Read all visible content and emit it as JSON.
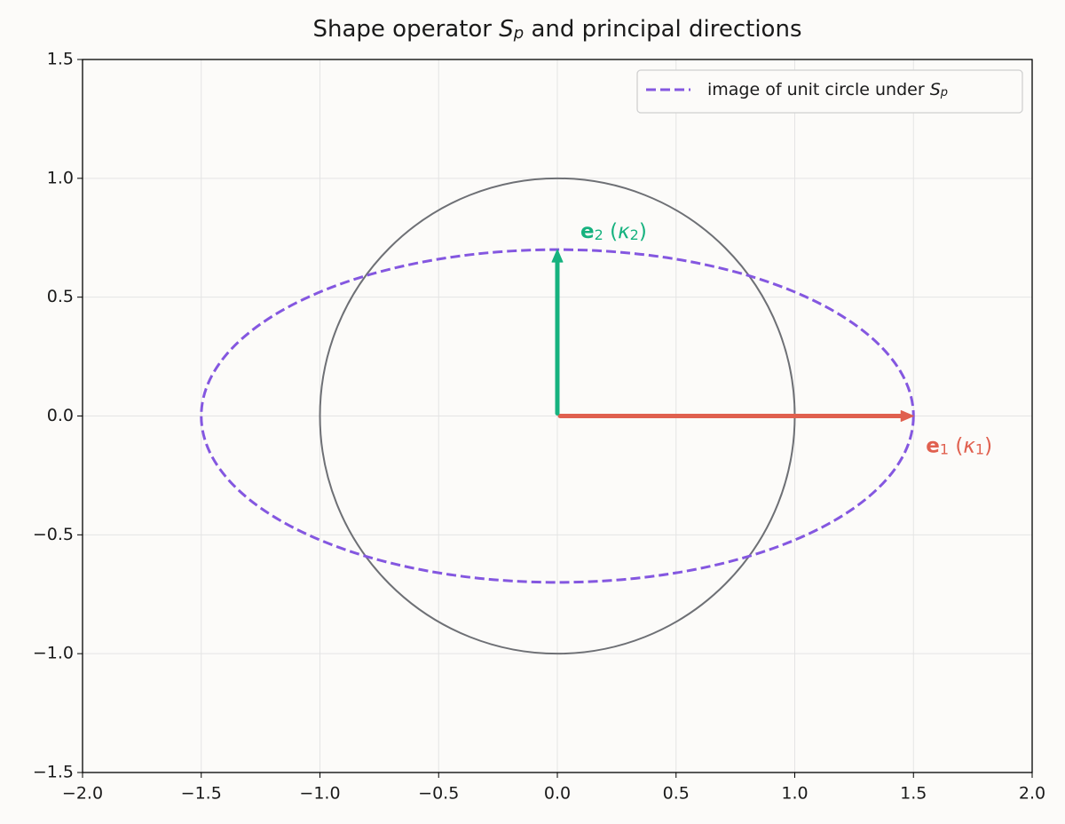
{
  "chart_data": {
    "type": "vector",
    "title": [
      {
        "text": "Shape operator "
      },
      {
        "text": "S",
        "style": "italic"
      },
      {
        "text": "p",
        "style": "sub-italic"
      },
      {
        "text": " and principal directions"
      }
    ],
    "xlim": [
      -2,
      2
    ],
    "ylim": [
      -1.5,
      1.5
    ],
    "xticks": [
      {
        "value": -2,
        "label": "−2.0"
      },
      {
        "value": -1.5,
        "label": "−1.5"
      },
      {
        "value": -1,
        "label": "−1.0"
      },
      {
        "value": -0.5,
        "label": "−0.5"
      },
      {
        "value": 0,
        "label": "0.0"
      },
      0.5,
      {
        "value": 1,
        "label": "1.0"
      },
      1.5,
      {
        "value": 2,
        "label": "2.0"
      }
    ],
    "yticks": [
      {
        "value": -1.5,
        "label": "−1.5"
      },
      {
        "value": -1,
        "label": "−1.0"
      },
      {
        "value": -0.5,
        "label": "−0.5"
      },
      {
        "value": 0,
        "label": "0.0"
      },
      0.5,
      {
        "value": 1,
        "label": "1.0"
      },
      1.5
    ],
    "grid": true,
    "legend": "upper right",
    "unit_circle": {
      "radius": 1,
      "color": "#6e7075"
    },
    "ellipse": {
      "name": [
        {
          "text": "image of unit circle under "
        },
        {
          "text": "S",
          "style": "italic"
        },
        {
          "text": "p",
          "style": "sub-italic"
        }
      ],
      "semi_axes": [
        1.5,
        0.7
      ],
      "color": "#8457e0",
      "dashed": true
    },
    "vectors": [
      {
        "x": 1.5,
        "y": 0,
        "color": "#e0604f",
        "label": [
          {
            "text": "e",
            "style": "bold"
          },
          {
            "text": "1",
            "style": "sub"
          },
          {
            "text": " ("
          },
          {
            "text": "κ",
            "style": "italic"
          },
          {
            "text": "1",
            "style": "sub"
          },
          {
            "text": ")"
          }
        ]
      },
      {
        "x": 0,
        "y": 0.7,
        "color": "#16b27f",
        "label": [
          {
            "text": "e",
            "style": "bold"
          },
          {
            "text": "2",
            "style": "sub"
          },
          {
            "text": " ("
          },
          {
            "text": "κ",
            "style": "italic"
          },
          {
            "text": "2",
            "style": "sub"
          },
          {
            "text": ")"
          }
        ]
      }
    ]
  }
}
